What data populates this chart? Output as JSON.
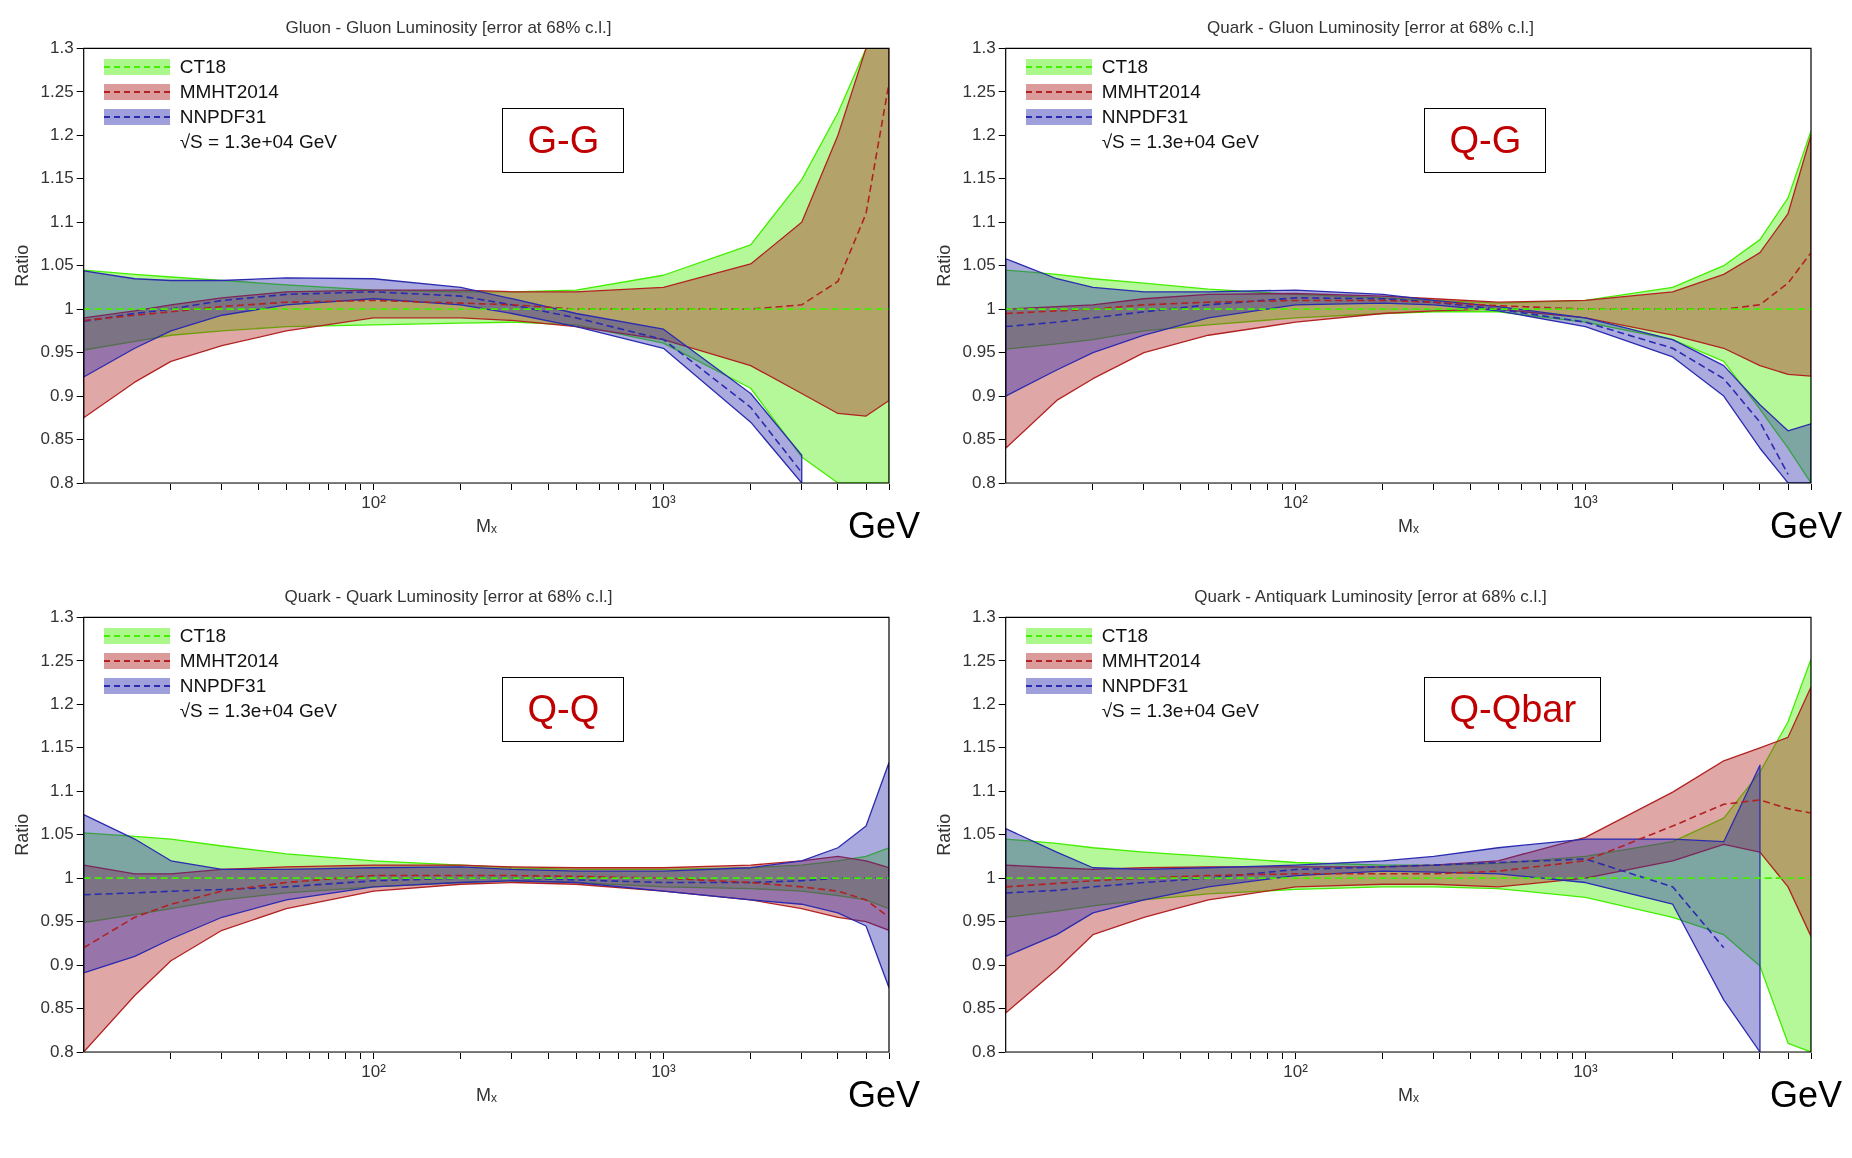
{
  "chart_data": [
    {
      "type": "line",
      "title": "Gluon - Gluon Luminosity [error at 68% c.l.]",
      "xlabel": "Mₓ",
      "ylabel": "Ratio",
      "log": "x",
      "legend": "top left",
      "line_style": "dashed",
      "x": [
        10,
        15,
        20,
        30,
        50,
        100,
        200,
        300,
        500,
        1000,
        2000,
        3000,
        4000,
        5000,
        6000
      ],
      "xlim": [
        10,
        6000
      ],
      "xticks": [
        {
          "value": 20,
          "label": null
        },
        {
          "value": 30,
          "label": null
        },
        {
          "value": 40,
          "label": null
        },
        {
          "value": 50,
          "label": null
        },
        {
          "value": 60,
          "label": null
        },
        {
          "value": 70,
          "label": null
        },
        {
          "value": 80,
          "label": null
        },
        {
          "value": 90,
          "label": null
        },
        {
          "value": 100,
          "label": "10²"
        },
        {
          "value": 200,
          "label": null
        },
        {
          "value": 300,
          "label": null
        },
        {
          "value": 400,
          "label": null
        },
        {
          "value": 500,
          "label": null
        },
        {
          "value": 600,
          "label": null
        },
        {
          "value": 700,
          "label": null
        },
        {
          "value": 800,
          "label": null
        },
        {
          "value": 900,
          "label": null
        },
        {
          "value": 1000,
          "label": "10³"
        },
        {
          "value": 2000,
          "label": null
        },
        {
          "value": 3000,
          "label": null
        },
        {
          "value": 4000,
          "label": null
        },
        {
          "value": 5000,
          "label": null
        },
        {
          "value": 6000,
          "label": null
        }
      ],
      "ylim": [
        0.8,
        1.3
      ],
      "yticks": [
        0.8,
        0.85,
        0.9,
        0.95,
        1,
        1.05,
        1.1,
        1.15,
        1.2,
        1.25,
        1.3
      ],
      "annotations": [
        "√S = 1.3e+04 GeV",
        "G-G",
        "GeV"
      ],
      "series": [
        {
          "name": "CT18",
          "color": "#44ee00",
          "values": [
            1,
            1,
            1,
            1,
            1,
            1,
            1,
            1,
            1,
            1,
            1,
            1,
            1,
            1,
            1
          ],
          "lower": [
            0.953,
            0.963,
            0.97,
            0.975,
            0.98,
            0.982,
            0.984,
            0.985,
            0.982,
            0.961,
            0.909,
            0.83,
            0.8,
            0.8,
            0.8
          ],
          "upper": [
            1.045,
            1.04,
            1.037,
            1.033,
            1.028,
            1.022,
            1.02,
            1.02,
            1.022,
            1.039,
            1.074,
            1.149,
            1.226,
            1.3,
            1.3
          ]
        },
        {
          "name": "MMHT2014",
          "color": "#b22222",
          "values": [
            0.987,
            0.993,
            0.997,
            1.003,
            1.008,
            1.01,
            1.007,
            1.005,
            1.0,
            1.0,
            1.0,
            1.005,
            1.032,
            1.11,
            1.26
          ],
          "lower": [
            0.875,
            0.916,
            0.94,
            0.958,
            0.975,
            0.99,
            0.99,
            0.987,
            0.98,
            0.965,
            0.935,
            0.903,
            0.88,
            0.877,
            0.895
          ],
          "upper": [
            0.99,
            0.998,
            1.005,
            1.013,
            1.02,
            1.022,
            1.022,
            1.02,
            1.02,
            1.025,
            1.052,
            1.1,
            1.2,
            1.3,
            1.3
          ]
        },
        {
          "name": "NNPDF31",
          "color": "#2b2bb0",
          "x": [
            10,
            15,
            20,
            30,
            50,
            100,
            200,
            300,
            500,
            1000,
            2000,
            3000
          ],
          "values": [
            0.986,
            0.995,
            1.0,
            1.01,
            1.017,
            1.02,
            1.015,
            1.005,
            0.99,
            0.965,
            0.887,
            0.812
          ],
          "lower": [
            0.922,
            0.955,
            0.975,
            0.993,
            1.005,
            1.012,
            1.005,
            0.995,
            0.98,
            0.955,
            0.87,
            0.8
          ],
          "upper": [
            1.044,
            1.035,
            1.033,
            1.033,
            1.036,
            1.035,
            1.025,
            1.012,
            0.995,
            0.977,
            0.903,
            0.832
          ]
        }
      ]
    },
    {
      "type": "line",
      "title": "Quark - Gluon Luminosity [error at 68% c.l.]",
      "xlabel": "Mₓ",
      "ylabel": "Ratio",
      "log": "x",
      "legend": "top left",
      "line_style": "dashed",
      "x": [
        10,
        15,
        20,
        30,
        50,
        100,
        200,
        300,
        500,
        1000,
        2000,
        3000,
        4000,
        5000,
        6000
      ],
      "xlim": [
        10,
        6000
      ],
      "xticks": [
        {
          "value": 20,
          "label": null
        },
        {
          "value": 30,
          "label": null
        },
        {
          "value": 40,
          "label": null
        },
        {
          "value": 50,
          "label": null
        },
        {
          "value": 60,
          "label": null
        },
        {
          "value": 70,
          "label": null
        },
        {
          "value": 80,
          "label": null
        },
        {
          "value": 90,
          "label": null
        },
        {
          "value": 100,
          "label": "10²"
        },
        {
          "value": 200,
          "label": null
        },
        {
          "value": 300,
          "label": null
        },
        {
          "value": 400,
          "label": null
        },
        {
          "value": 500,
          "label": null
        },
        {
          "value": 600,
          "label": null
        },
        {
          "value": 700,
          "label": null
        },
        {
          "value": 800,
          "label": null
        },
        {
          "value": 900,
          "label": null
        },
        {
          "value": 1000,
          "label": "10³"
        },
        {
          "value": 2000,
          "label": null
        },
        {
          "value": 3000,
          "label": null
        },
        {
          "value": 4000,
          "label": null
        },
        {
          "value": 5000,
          "label": null
        },
        {
          "value": 6000,
          "label": null
        }
      ],
      "ylim": [
        0.8,
        1.3
      ],
      "yticks": [
        0.8,
        0.85,
        0.9,
        0.95,
        1,
        1.05,
        1.1,
        1.15,
        1.2,
        1.25,
        1.3
      ],
      "annotations": [
        "√S = 1.3e+04 GeV",
        "Q-G",
        "GeV"
      ],
      "series": [
        {
          "name": "CT18",
          "color": "#44ee00",
          "values": [
            1,
            1,
            1,
            1,
            1,
            1,
            1,
            1,
            1,
            1,
            1,
            1,
            1,
            1,
            1
          ],
          "lower": [
            0.954,
            0.96,
            0.965,
            0.975,
            0.982,
            0.99,
            0.995,
            0.997,
            0.997,
            0.985,
            0.965,
            0.94,
            0.885,
            0.84,
            0.8
          ],
          "upper": [
            1.045,
            1.04,
            1.035,
            1.03,
            1.023,
            1.017,
            1.013,
            1.01,
            1.007,
            1.01,
            1.025,
            1.05,
            1.08,
            1.128,
            1.205
          ]
        },
        {
          "name": "MMHT2014",
          "color": "#b22222",
          "values": [
            0.995,
            0.998,
            1.0,
            1.005,
            1.008,
            1.01,
            1.01,
            1.008,
            1.004,
            1.0,
            1.0,
            1.0,
            1.005,
            1.03,
            1.065
          ],
          "lower": [
            0.84,
            0.895,
            0.92,
            0.95,
            0.97,
            0.985,
            0.995,
            0.998,
            1.0,
            0.99,
            0.97,
            0.955,
            0.935,
            0.925,
            0.923
          ],
          "upper": [
            1.0,
            1.003,
            1.005,
            1.012,
            1.017,
            1.018,
            1.015,
            1.012,
            1.008,
            1.01,
            1.02,
            1.04,
            1.065,
            1.11,
            1.2
          ]
        },
        {
          "name": "NNPDF31",
          "color": "#2b2bb0",
          "values": [
            0.98,
            0.985,
            0.99,
            0.997,
            1.005,
            1.013,
            1.012,
            1.008,
            1.0,
            0.985,
            0.955,
            0.92,
            0.87,
            0.81,
            null
          ],
          "lower": [
            0.9,
            0.93,
            0.95,
            0.97,
            0.99,
            1.005,
            1.007,
            1.005,
            0.998,
            0.98,
            0.945,
            0.9,
            0.84,
            0.8,
            0.8
          ],
          "upper": [
            1.058,
            1.035,
            1.025,
            1.02,
            1.02,
            1.022,
            1.017,
            1.01,
            1.003,
            0.99,
            0.965,
            0.935,
            0.89,
            0.86,
            0.868
          ]
        }
      ]
    },
    {
      "type": "line",
      "title": "Quark - Quark Luminosity [error at 68% c.l.]",
      "xlabel": "Mₓ",
      "ylabel": "Ratio",
      "log": "x",
      "legend": "top left",
      "line_style": "dashed",
      "x": [
        10,
        15,
        20,
        30,
        50,
        100,
        200,
        300,
        500,
        1000,
        2000,
        3000,
        4000,
        5000,
        6000
      ],
      "xlim": [
        10,
        6000
      ],
      "xticks": [
        {
          "value": 20,
          "label": null
        },
        {
          "value": 30,
          "label": null
        },
        {
          "value": 40,
          "label": null
        },
        {
          "value": 50,
          "label": null
        },
        {
          "value": 60,
          "label": null
        },
        {
          "value": 70,
          "label": null
        },
        {
          "value": 80,
          "label": null
        },
        {
          "value": 90,
          "label": null
        },
        {
          "value": 100,
          "label": "10²"
        },
        {
          "value": 200,
          "label": null
        },
        {
          "value": 300,
          "label": null
        },
        {
          "value": 400,
          "label": null
        },
        {
          "value": 500,
          "label": null
        },
        {
          "value": 600,
          "label": null
        },
        {
          "value": 700,
          "label": null
        },
        {
          "value": 800,
          "label": null
        },
        {
          "value": 900,
          "label": null
        },
        {
          "value": 1000,
          "label": "10³"
        },
        {
          "value": 2000,
          "label": null
        },
        {
          "value": 3000,
          "label": null
        },
        {
          "value": 4000,
          "label": null
        },
        {
          "value": 5000,
          "label": null
        },
        {
          "value": 6000,
          "label": null
        }
      ],
      "ylim": [
        0.8,
        1.3
      ],
      "yticks": [
        0.8,
        0.85,
        0.9,
        0.95,
        1,
        1.05,
        1.1,
        1.15,
        1.2,
        1.25,
        1.3
      ],
      "annotations": [
        "√S = 1.3e+04 GeV",
        "Q-Q",
        "GeV"
      ],
      "series": [
        {
          "name": "CT18",
          "color": "#44ee00",
          "values": [
            1,
            1,
            1,
            1,
            1,
            1,
            1,
            1,
            1,
            1,
            1,
            1,
            1,
            1,
            1
          ],
          "lower": [
            0.949,
            0.958,
            0.965,
            0.975,
            0.983,
            0.99,
            0.995,
            0.997,
            0.995,
            0.99,
            0.988,
            0.985,
            0.98,
            0.975,
            0.965
          ],
          "upper": [
            1.052,
            1.048,
            1.045,
            1.037,
            1.028,
            1.02,
            1.015,
            1.012,
            1.01,
            1.01,
            1.012,
            1.015,
            1.02,
            1.025,
            1.035
          ]
        },
        {
          "name": "MMHT2014",
          "color": "#b22222",
          "values": [
            0.92,
            0.955,
            0.97,
            0.985,
            0.995,
            1.003,
            1.003,
            1.003,
            1.002,
            1.0,
            0.995,
            0.99,
            0.985,
            0.975,
            0.955
          ],
          "lower": [
            0.8,
            0.865,
            0.905,
            0.94,
            0.965,
            0.985,
            0.993,
            0.995,
            0.993,
            0.985,
            0.975,
            0.965,
            0.955,
            0.95,
            0.94
          ],
          "upper": [
            1.015,
            1.005,
            1.005,
            1.01,
            1.013,
            1.015,
            1.015,
            1.013,
            1.012,
            1.012,
            1.015,
            1.02,
            1.025,
            1.02,
            1.012
          ]
        },
        {
          "name": "NNPDF31",
          "color": "#2b2bb0",
          "values": [
            0.981,
            0.983,
            0.985,
            0.987,
            0.99,
            0.997,
            1.0,
            1.0,
            0.998,
            0.995,
            0.995,
            0.997,
            1.0,
            1.0,
            1.0
          ],
          "lower": [
            0.891,
            0.91,
            0.93,
            0.955,
            0.975,
            0.99,
            0.995,
            0.997,
            0.995,
            0.985,
            0.975,
            0.97,
            0.96,
            0.945,
            0.874
          ],
          "upper": [
            1.073,
            1.045,
            1.02,
            1.01,
            1.01,
            1.012,
            1.013,
            1.01,
            1.008,
            1.008,
            1.012,
            1.02,
            1.035,
            1.06,
            1.133
          ]
        }
      ]
    },
    {
      "type": "line",
      "title": "Quark - Antiquark Luminosity [error at 68% c.l.]",
      "xlabel": "Mₓ",
      "ylabel": "Ratio",
      "log": "x",
      "legend": "top left",
      "line_style": "dashed",
      "x": [
        10,
        15,
        20,
        30,
        50,
        100,
        200,
        300,
        500,
        1000,
        2000,
        3000,
        4000,
        5000,
        6000
      ],
      "xlim": [
        10,
        6000
      ],
      "xticks": [
        {
          "value": 20,
          "label": null
        },
        {
          "value": 30,
          "label": null
        },
        {
          "value": 40,
          "label": null
        },
        {
          "value": 50,
          "label": null
        },
        {
          "value": 60,
          "label": null
        },
        {
          "value": 70,
          "label": null
        },
        {
          "value": 80,
          "label": null
        },
        {
          "value": 90,
          "label": null
        },
        {
          "value": 100,
          "label": "10²"
        },
        {
          "value": 200,
          "label": null
        },
        {
          "value": 300,
          "label": null
        },
        {
          "value": 400,
          "label": null
        },
        {
          "value": 500,
          "label": null
        },
        {
          "value": 600,
          "label": null
        },
        {
          "value": 700,
          "label": null
        },
        {
          "value": 800,
          "label": null
        },
        {
          "value": 900,
          "label": null
        },
        {
          "value": 1000,
          "label": "10³"
        },
        {
          "value": 2000,
          "label": null
        },
        {
          "value": 3000,
          "label": null
        },
        {
          "value": 4000,
          "label": null
        },
        {
          "value": 5000,
          "label": null
        },
        {
          "value": 6000,
          "label": null
        }
      ],
      "ylim": [
        0.8,
        1.3
      ],
      "yticks": [
        0.8,
        0.85,
        0.9,
        0.95,
        1,
        1.05,
        1.1,
        1.15,
        1.2,
        1.25,
        1.3
      ],
      "annotations": [
        "√S = 1.3e+04 GeV",
        "Q-Qbar",
        "GeV"
      ],
      "series": [
        {
          "name": "CT18",
          "color": "#44ee00",
          "values": [
            1,
            1,
            1,
            1,
            1,
            1,
            1,
            1,
            1,
            1,
            1,
            1,
            1,
            1,
            1
          ],
          "lower": [
            0.955,
            0.962,
            0.968,
            0.975,
            0.982,
            0.987,
            0.99,
            0.99,
            0.988,
            0.978,
            0.955,
            0.935,
            0.899,
            0.81,
            0.8
          ],
          "upper": [
            1.045,
            1.04,
            1.035,
            1.03,
            1.025,
            1.018,
            1.015,
            1.015,
            1.017,
            1.025,
            1.042,
            1.069,
            1.122,
            1.18,
            1.252
          ]
        },
        {
          "name": "MMHT2014",
          "color": "#b22222",
          "values": [
            0.99,
            0.994,
            0.997,
            1.0,
            1.003,
            1.005,
            1.005,
            1.005,
            1.008,
            1.02,
            1.06,
            1.085,
            1.09,
            1.08,
            1.075
          ],
          "lower": [
            0.845,
            0.895,
            0.935,
            0.955,
            0.975,
            0.99,
            0.993,
            0.993,
            0.99,
            1.0,
            1.02,
            1.039,
            1.03,
            0.99,
            0.933
          ],
          "upper": [
            1.015,
            1.012,
            1.01,
            1.012,
            1.013,
            1.013,
            1.013,
            1.015,
            1.02,
            1.047,
            1.099,
            1.135,
            1.15,
            1.162,
            1.22
          ]
        },
        {
          "name": "NNPDF31",
          "color": "#2b2bb0",
          "x": [
            10,
            15,
            20,
            30,
            50,
            100,
            200,
            300,
            500,
            1000,
            2000,
            3000,
            4000
          ],
          "values": [
            0.983,
            0.986,
            0.99,
            0.995,
            1.0,
            1.01,
            1.013,
            1.015,
            1.018,
            1.022,
            0.99,
            0.92,
            null
          ],
          "lower": [
            0.91,
            0.935,
            0.96,
            0.975,
            0.99,
            1.003,
            1.008,
            1.007,
            1.005,
            0.995,
            0.97,
            0.86,
            0.8
          ],
          "upper": [
            1.057,
            1.03,
            1.012,
            1.01,
            1.012,
            1.015,
            1.02,
            1.025,
            1.035,
            1.045,
            1.045,
            1.042,
            1.13
          ]
        }
      ]
    }
  ]
}
